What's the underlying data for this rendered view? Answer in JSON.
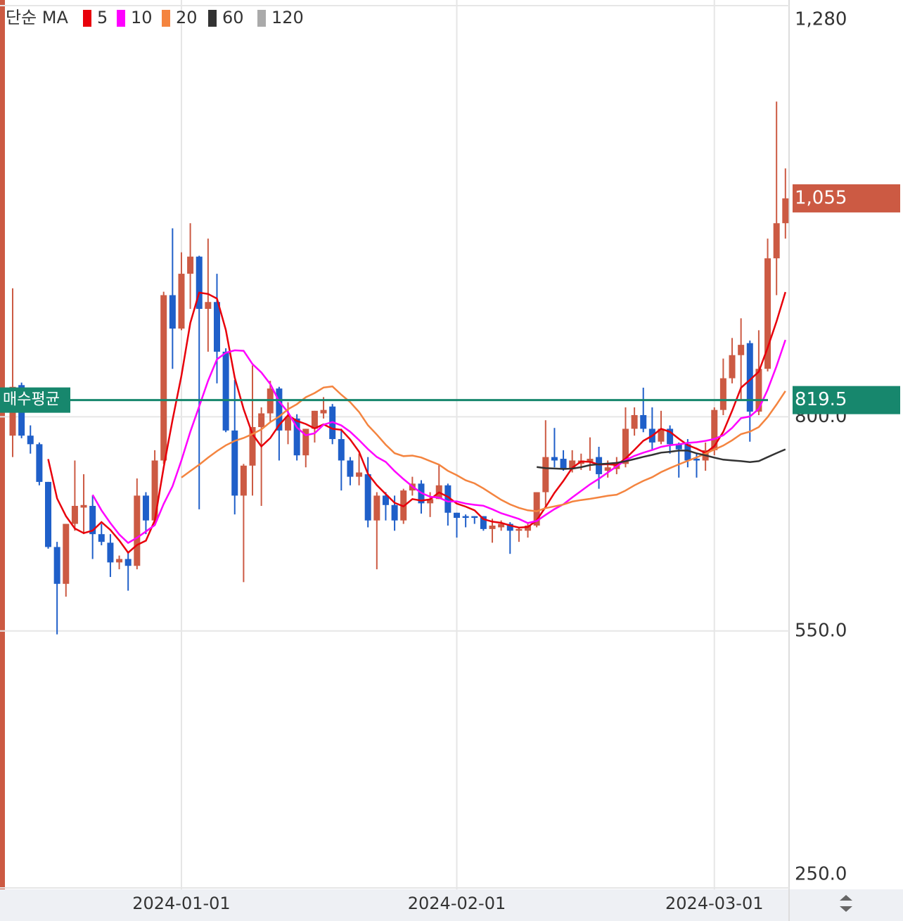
{
  "chart_data": {
    "type": "candlestick",
    "legend_title": "단순 MA",
    "ma": [
      {
        "period": 5,
        "color": "#e8000b"
      },
      {
        "period": 10,
        "color": "#ff00ff"
      },
      {
        "period": 20,
        "color": "#f4843f"
      },
      {
        "period": 60,
        "color": "#333333"
      },
      {
        "period": 120,
        "color": "#aaaaaa"
      }
    ],
    "up_color": "#cc5a43",
    "down_color": "#1f5fc9",
    "categories": [
      null,
      null,
      null,
      null,
      null,
      null,
      null,
      null,
      null,
      null,
      null,
      null,
      null,
      null,
      null,
      null,
      null,
      null,
      null,
      "2024-01-01",
      null,
      null,
      null,
      null,
      null,
      null,
      null,
      null,
      null,
      null,
      null,
      null,
      null,
      null,
      null,
      null,
      null,
      null,
      null,
      null,
      null,
      null,
      null,
      null,
      null,
      null,
      null,
      null,
      null,
      null,
      "2024-02-01",
      null,
      null,
      null,
      null,
      null,
      null,
      null,
      null,
      null,
      null,
      null,
      null,
      null,
      null,
      null,
      null,
      null,
      null,
      null,
      null,
      null,
      null,
      null,
      null,
      null,
      null,
      null,
      null,
      "2024-03-01",
      null,
      null,
      null,
      null,
      null,
      null,
      null,
      null
    ],
    "open": [
      778,
      837,
      778,
      768,
      724,
      648,
      605,
      675,
      694,
      696,
      663,
      653,
      630,
      634,
      626,
      708,
      679,
      749,
      942,
      903,
      967,
      987,
      926,
      934,
      876,
      784,
      708,
      743,
      788,
      804,
      833,
      784,
      798,
      755,
      786,
      804,
      812,
      774,
      749,
      730,
      733,
      679,
      708,
      697,
      679,
      714,
      722,
      699,
      704,
      720,
      688,
      684,
      684,
      684,
      669,
      671,
      675,
      667,
      667,
      673,
      712,
      753,
      751,
      739,
      745,
      747,
      753,
      737,
      739,
      745,
      786,
      802,
      786,
      771,
      786,
      768,
      768,
      751,
      749,
      761,
      808,
      845,
      872,
      886,
      806,
      856,
      985,
      1026
    ],
    "high": [
      950,
      840,
      790,
      770,
      724,
      654,
      675,
      749,
      733,
      708,
      675,
      663,
      638,
      642,
      728,
      712,
      761,
      946,
      1020,
      992,
      1026,
      988,
      1008,
      967,
      880,
      843,
      745,
      860,
      811,
      842,
      835,
      817,
      803,
      786,
      807,
      823,
      815,
      786,
      753,
      757,
      753,
      712,
      712,
      708,
      716,
      730,
      726,
      712,
      744,
      722,
      688,
      686,
      684,
      684,
      681,
      679,
      677,
      671,
      675,
      712,
      796,
      787,
      761,
      761,
      757,
      776,
      765,
      749,
      753,
      811,
      811,
      834,
      811,
      807,
      790,
      770,
      774,
      757,
      770,
      811,
      868,
      892,
      915,
      889,
      901,
      1008,
      1168,
      1090
    ],
    "low": [
      753,
      775,
      757,
      720,
      646,
      546,
      590,
      667,
      663,
      634,
      650,
      613,
      622,
      597,
      622,
      663,
      675,
      745,
      856,
      901,
      926,
      692,
      876,
      839,
      782,
      686,
      607,
      708,
      696,
      794,
      749,
      768,
      749,
      741,
      770,
      798,
      768,
      714,
      720,
      720,
      671,
      622,
      679,
      667,
      675,
      708,
      687,
      683,
      704,
      673,
      659,
      671,
      675,
      667,
      653,
      667,
      640,
      654,
      659,
      671,
      696,
      741,
      737,
      735,
      738,
      737,
      716,
      729,
      733,
      741,
      778,
      782,
      761,
      768,
      757,
      729,
      741,
      729,
      737,
      755,
      802,
      839,
      819,
      771,
      802,
      853,
      942,
      1008
    ],
    "close": [
      835,
      778,
      768,
      724,
      648,
      605,
      675,
      696,
      697,
      663,
      654,
      630,
      634,
      626,
      708,
      679,
      749,
      942,
      903,
      967,
      987,
      926,
      934,
      876,
      784,
      708,
      743,
      788,
      804,
      833,
      784,
      800,
      755,
      786,
      807,
      808,
      774,
      749,
      730,
      735,
      679,
      708,
      697,
      679,
      714,
      722,
      699,
      704,
      720,
      688,
      682,
      682,
      682,
      669,
      673,
      675,
      667,
      669,
      673,
      712,
      753,
      749,
      739,
      749,
      749,
      751,
      733,
      741,
      745,
      786,
      802,
      786,
      770,
      786,
      768,
      762,
      749,
      749,
      761,
      808,
      845,
      872,
      884,
      806,
      856,
      985,
      1026,
      1055
    ],
    "ylim": [
      250,
      1280
    ],
    "yticks": [
      {
        "value": 250,
        "label": "250.0"
      },
      {
        "value": 550,
        "label": "550.0"
      },
      {
        "value": 800,
        "label": "800.0"
      },
      {
        "value": 1280,
        "label": "1,280"
      }
    ],
    "grid": true,
    "avg_line": {
      "label": "매수평균",
      "value": 819.5,
      "color": "#17876d"
    },
    "last_price": {
      "value": 1055,
      "label": "1,055"
    }
  }
}
